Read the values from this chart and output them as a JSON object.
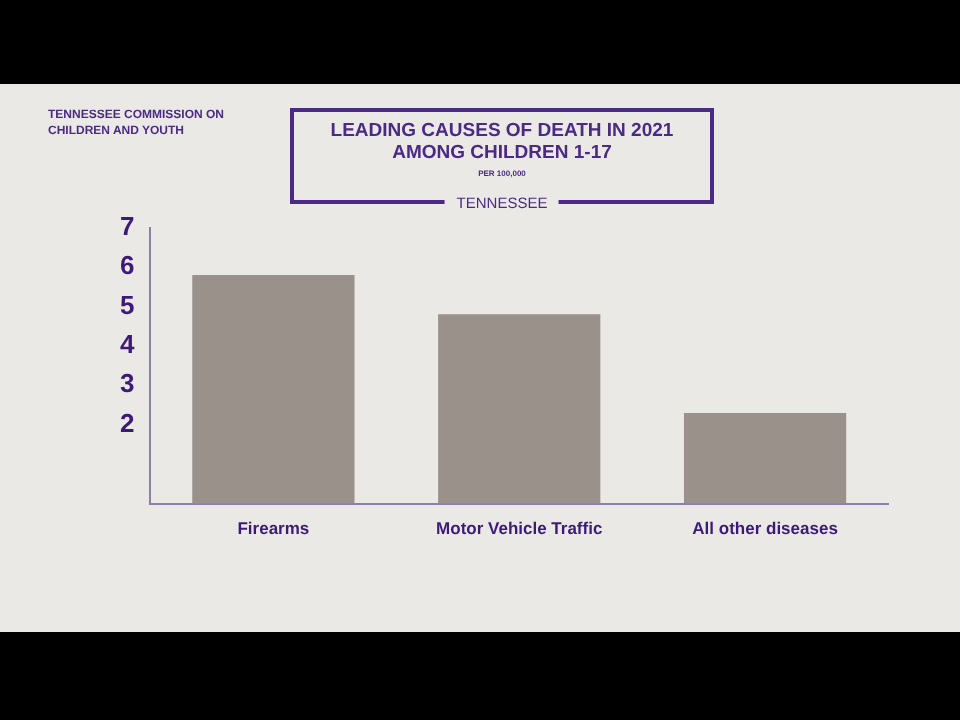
{
  "chart_data": {
    "type": "bar",
    "title": "LEADING CAUSES OF DEATH IN 2021 AMONG CHILDREN 1-17",
    "subtitle": "PER 100,000",
    "annotations": [
      "TENNESSEE",
      "TENNESSEE COMMISSION ON CHILDREN AND YOUTH"
    ],
    "categories": [
      "Firearms",
      "Motor Vehicle Traffic",
      "All other diseases"
    ],
    "values": [
      5.8,
      4.8,
      2.3
    ],
    "color": "#9b918b",
    "ylim": [
      0,
      7
    ],
    "yticks": [
      2,
      3,
      4,
      5,
      6,
      7
    ],
    "grid": false,
    "legend": false
  }
}
